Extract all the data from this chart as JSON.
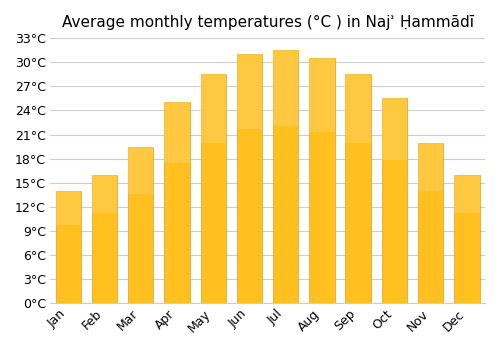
{
  "title": "Average monthly temperatures (°C ) in Najʾ Ḥammādī",
  "months": [
    "Jan",
    "Feb",
    "Mar",
    "Apr",
    "May",
    "Jun",
    "Jul",
    "Aug",
    "Sep",
    "Oct",
    "Nov",
    "Dec"
  ],
  "values": [
    14,
    16,
    19.5,
    25,
    28.5,
    31,
    31.5,
    30.5,
    28.5,
    25.5,
    20,
    16
  ],
  "bar_color": "#FFC020",
  "bar_edge_color": "#E8A010",
  "ylim": [
    0,
    33
  ],
  "yticks": [
    0,
    3,
    6,
    9,
    12,
    15,
    18,
    21,
    24,
    27,
    30,
    33
  ],
  "ytick_labels": [
    "0°C",
    "3°C",
    "6°C",
    "9°C",
    "12°C",
    "15°C",
    "18°C",
    "21°C",
    "24°C",
    "27°C",
    "30°C",
    "33°C"
  ],
  "background_color": "#ffffff",
  "grid_color": "#cccccc",
  "title_fontsize": 11,
  "tick_fontsize": 9
}
